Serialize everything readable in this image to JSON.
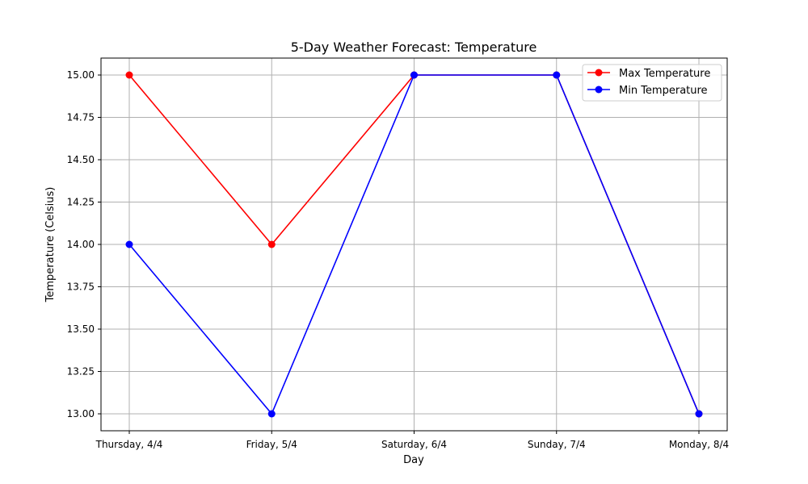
{
  "chart_data": {
    "type": "line",
    "title": "5-Day Weather Forecast: Temperature",
    "xlabel": "Day",
    "ylabel": "Temperature (Celsius)",
    "categories": [
      "Thursday, 4/4",
      "Friday, 5/4",
      "Saturday, 6/4",
      "Sunday, 7/4",
      "Monday, 8/4"
    ],
    "yticks": [
      "13.00",
      "13.25",
      "13.50",
      "13.75",
      "14.00",
      "14.25",
      "14.50",
      "14.75",
      "15.00"
    ],
    "ylim": [
      12.9,
      15.1
    ],
    "grid": true,
    "legend_position": "top-right",
    "series": [
      {
        "name": "Max Temperature",
        "color": "#ff0000",
        "marker": "circle",
        "values": [
          15,
          14,
          15,
          15,
          13
        ]
      },
      {
        "name": "Min Temperature",
        "color": "#0000ff",
        "marker": "circle",
        "values": [
          14,
          13,
          15,
          15,
          13
        ]
      }
    ]
  }
}
